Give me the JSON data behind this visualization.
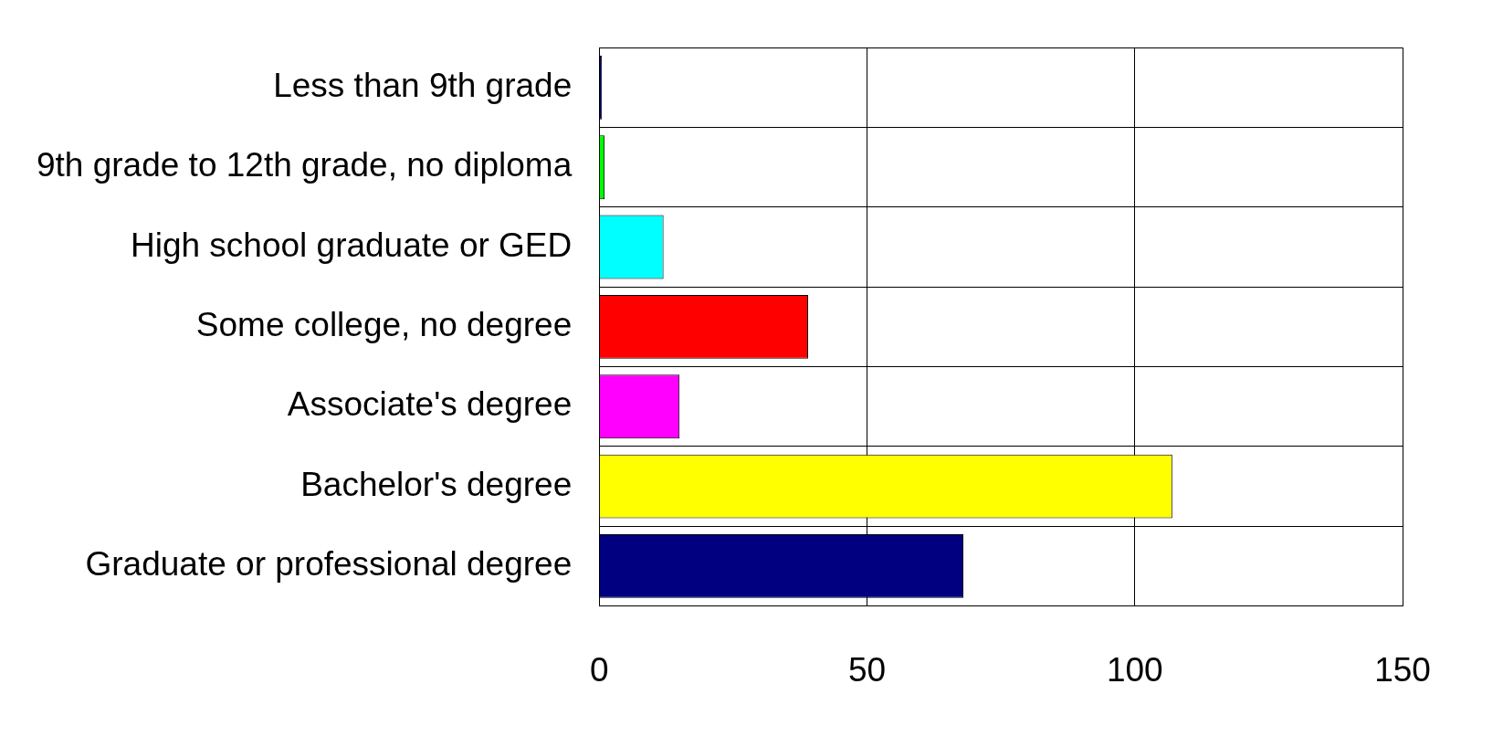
{
  "chart_data": {
    "type": "bar",
    "orientation": "horizontal",
    "categories": [
      "Less than 9th grade",
      "9th grade to 12th grade, no diploma",
      "High school graduate or GED",
      "Some college, no degree",
      "Associate's degree",
      "Bachelor's degree",
      "Graduate or professional degree"
    ],
    "values": [
      0.5,
      1,
      12,
      39,
      15,
      107,
      68
    ],
    "colors": [
      "#000080",
      "#00ff00",
      "#00ffff",
      "#ff0000",
      "#ff00ff",
      "#ffff00",
      "#000080"
    ],
    "xlim": [
      0,
      150
    ],
    "xticks": [
      0,
      50,
      100,
      150
    ],
    "grid": true
  }
}
